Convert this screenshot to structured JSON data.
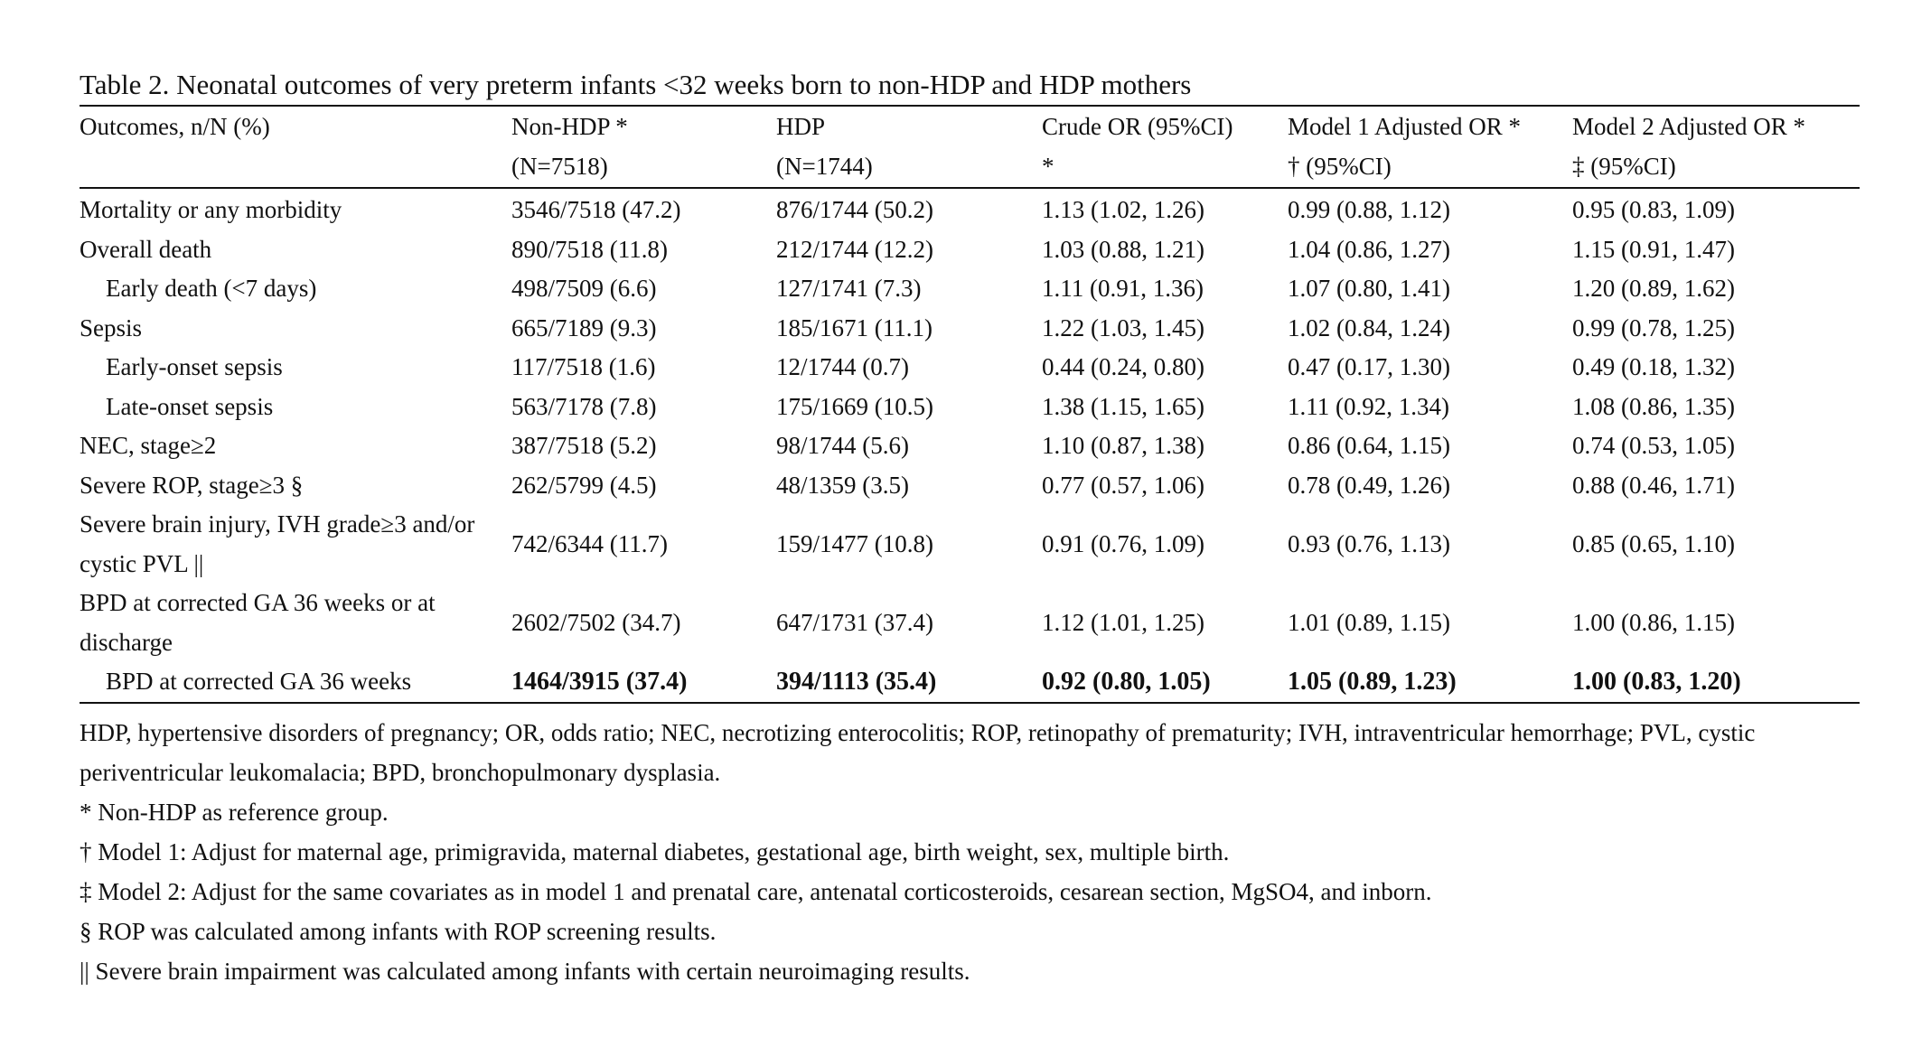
{
  "title": "Table 2. Neonatal outcomes of very preterm infants <32 weeks born to non-HDP and HDP mothers",
  "header": {
    "col1": [
      "Outcomes, n/N (%)",
      ""
    ],
    "col2": [
      "Non-HDP *",
      "(N=7518)"
    ],
    "col3": [
      "HDP",
      "(N=1744)"
    ],
    "col4": [
      "Crude OR (95%CI)",
      "*"
    ],
    "col5": [
      "Model 1 Adjusted OR *",
      "† (95%CI)"
    ],
    "col6": [
      "Model 2 Adjusted OR *",
      "‡ (95%CI)"
    ]
  },
  "rows": [
    {
      "outcome": "Mortality or any morbidity",
      "non_hdp": "3546/7518 (47.2)",
      "hdp": "876/1744 (50.2)",
      "crude": "1.13 (1.02, 1.26)",
      "model1": "0.99 (0.88, 1.12)",
      "model2": "0.95 (0.83, 1.09)"
    },
    {
      "outcome": "Overall death",
      "non_hdp": "890/7518 (11.8)",
      "hdp": "212/1744 (12.2)",
      "crude": "1.03 (0.88, 1.21)",
      "model1": "1.04 (0.86, 1.27)",
      "model2": "1.15 (0.91, 1.47)"
    },
    {
      "outcome": "Early death (<7 days)",
      "non_hdp": "498/7509 (6.6)",
      "hdp": "127/1741 (7.3)",
      "crude": "1.11 (0.91, 1.36)",
      "model1": "1.07 (0.80, 1.41)",
      "model2": "1.20 (0.89, 1.62)"
    },
    {
      "outcome": "Sepsis",
      "non_hdp": "665/7189 (9.3)",
      "hdp": "185/1671 (11.1)",
      "crude": "1.22 (1.03, 1.45)",
      "model1": "1.02 (0.84, 1.24)",
      "model2": "0.99 (0.78, 1.25)"
    },
    {
      "outcome": "Early-onset sepsis",
      "non_hdp": "117/7518 (1.6)",
      "hdp": "12/1744 (0.7)",
      "crude": "0.44 (0.24, 0.80)",
      "model1": "0.47 (0.17, 1.30)",
      "model2": "0.49 (0.18, 1.32)"
    },
    {
      "outcome": "Late-onset sepsis",
      "non_hdp": "563/7178 (7.8)",
      "hdp": "175/1669 (10.5)",
      "crude": "1.38 (1.15, 1.65)",
      "model1": "1.11 (0.92, 1.34)",
      "model2": "1.08 (0.86, 1.35)"
    },
    {
      "outcome": "NEC, stage≥2",
      "non_hdp": "387/7518 (5.2)",
      "hdp": "98/1744 (5.6)",
      "crude": "1.10 (0.87, 1.38)",
      "model1": "0.86 (0.64, 1.15)",
      "model2": "0.74 (0.53, 1.05)"
    },
    {
      "outcome": "Severe ROP, stage≥3 §",
      "non_hdp": "262/5799 (4.5)",
      "hdp": "48/1359 (3.5)",
      "crude": "0.77 (0.57, 1.06)",
      "model1": "0.78 (0.49, 1.26)",
      "model2": "0.88 (0.46, 1.71)"
    },
    {
      "outcome": "Severe brain injury, IVH grade≥3 and/or cystic PVL ||",
      "non_hdp": "742/6344 (11.7)",
      "hdp": "159/1477 (10.8)",
      "crude": "0.91 (0.76, 1.09)",
      "model1": "0.93 (0.76, 1.13)",
      "model2": "0.85 (0.65, 1.10)"
    },
    {
      "outcome": "BPD at corrected GA 36 weeks or at discharge",
      "non_hdp": "2602/7502 (34.7)",
      "hdp": "647/1731 (37.4)",
      "crude": "1.12 (1.01, 1.25)",
      "model1": "1.01 (0.89, 1.15)",
      "model2": "1.00 (0.86, 1.15)"
    },
    {
      "outcome": "BPD at corrected GA 36 weeks",
      "non_hdp": "1464/3915 (37.4)",
      "hdp": "394/1113 (35.4)",
      "crude": "0.92 (0.80, 1.05)",
      "model1": "1.05 (0.89, 1.23)",
      "model2": "1.00 (0.83, 1.20)"
    }
  ],
  "notes": {
    "abbrev": "HDP, hypertensive disorders of pregnancy; OR, odds ratio; NEC, necrotizing enterocolitis; ROP, retinopathy of prematurity; IVH, intraventricular hemorrhage; PVL, cystic periventricular leukomalacia; BPD, bronchopulmonary dysplasia.",
    "star": "* Non-HDP as reference group.",
    "dagger": "† Model 1: Adjust for maternal age, primigravida, maternal diabetes, gestational age, birth weight, sex, multiple birth.",
    "ddagger": "‡ Model 2: Adjust for the same covariates as in model 1 and prenatal care, antenatal corticosteroids, cesarean section, MgSO4, and inborn.",
    "section": "§ ROP was calculated among infants with ROP screening results.",
    "pipes": "|| Severe brain impairment was calculated among infants with certain neuroimaging results."
  }
}
